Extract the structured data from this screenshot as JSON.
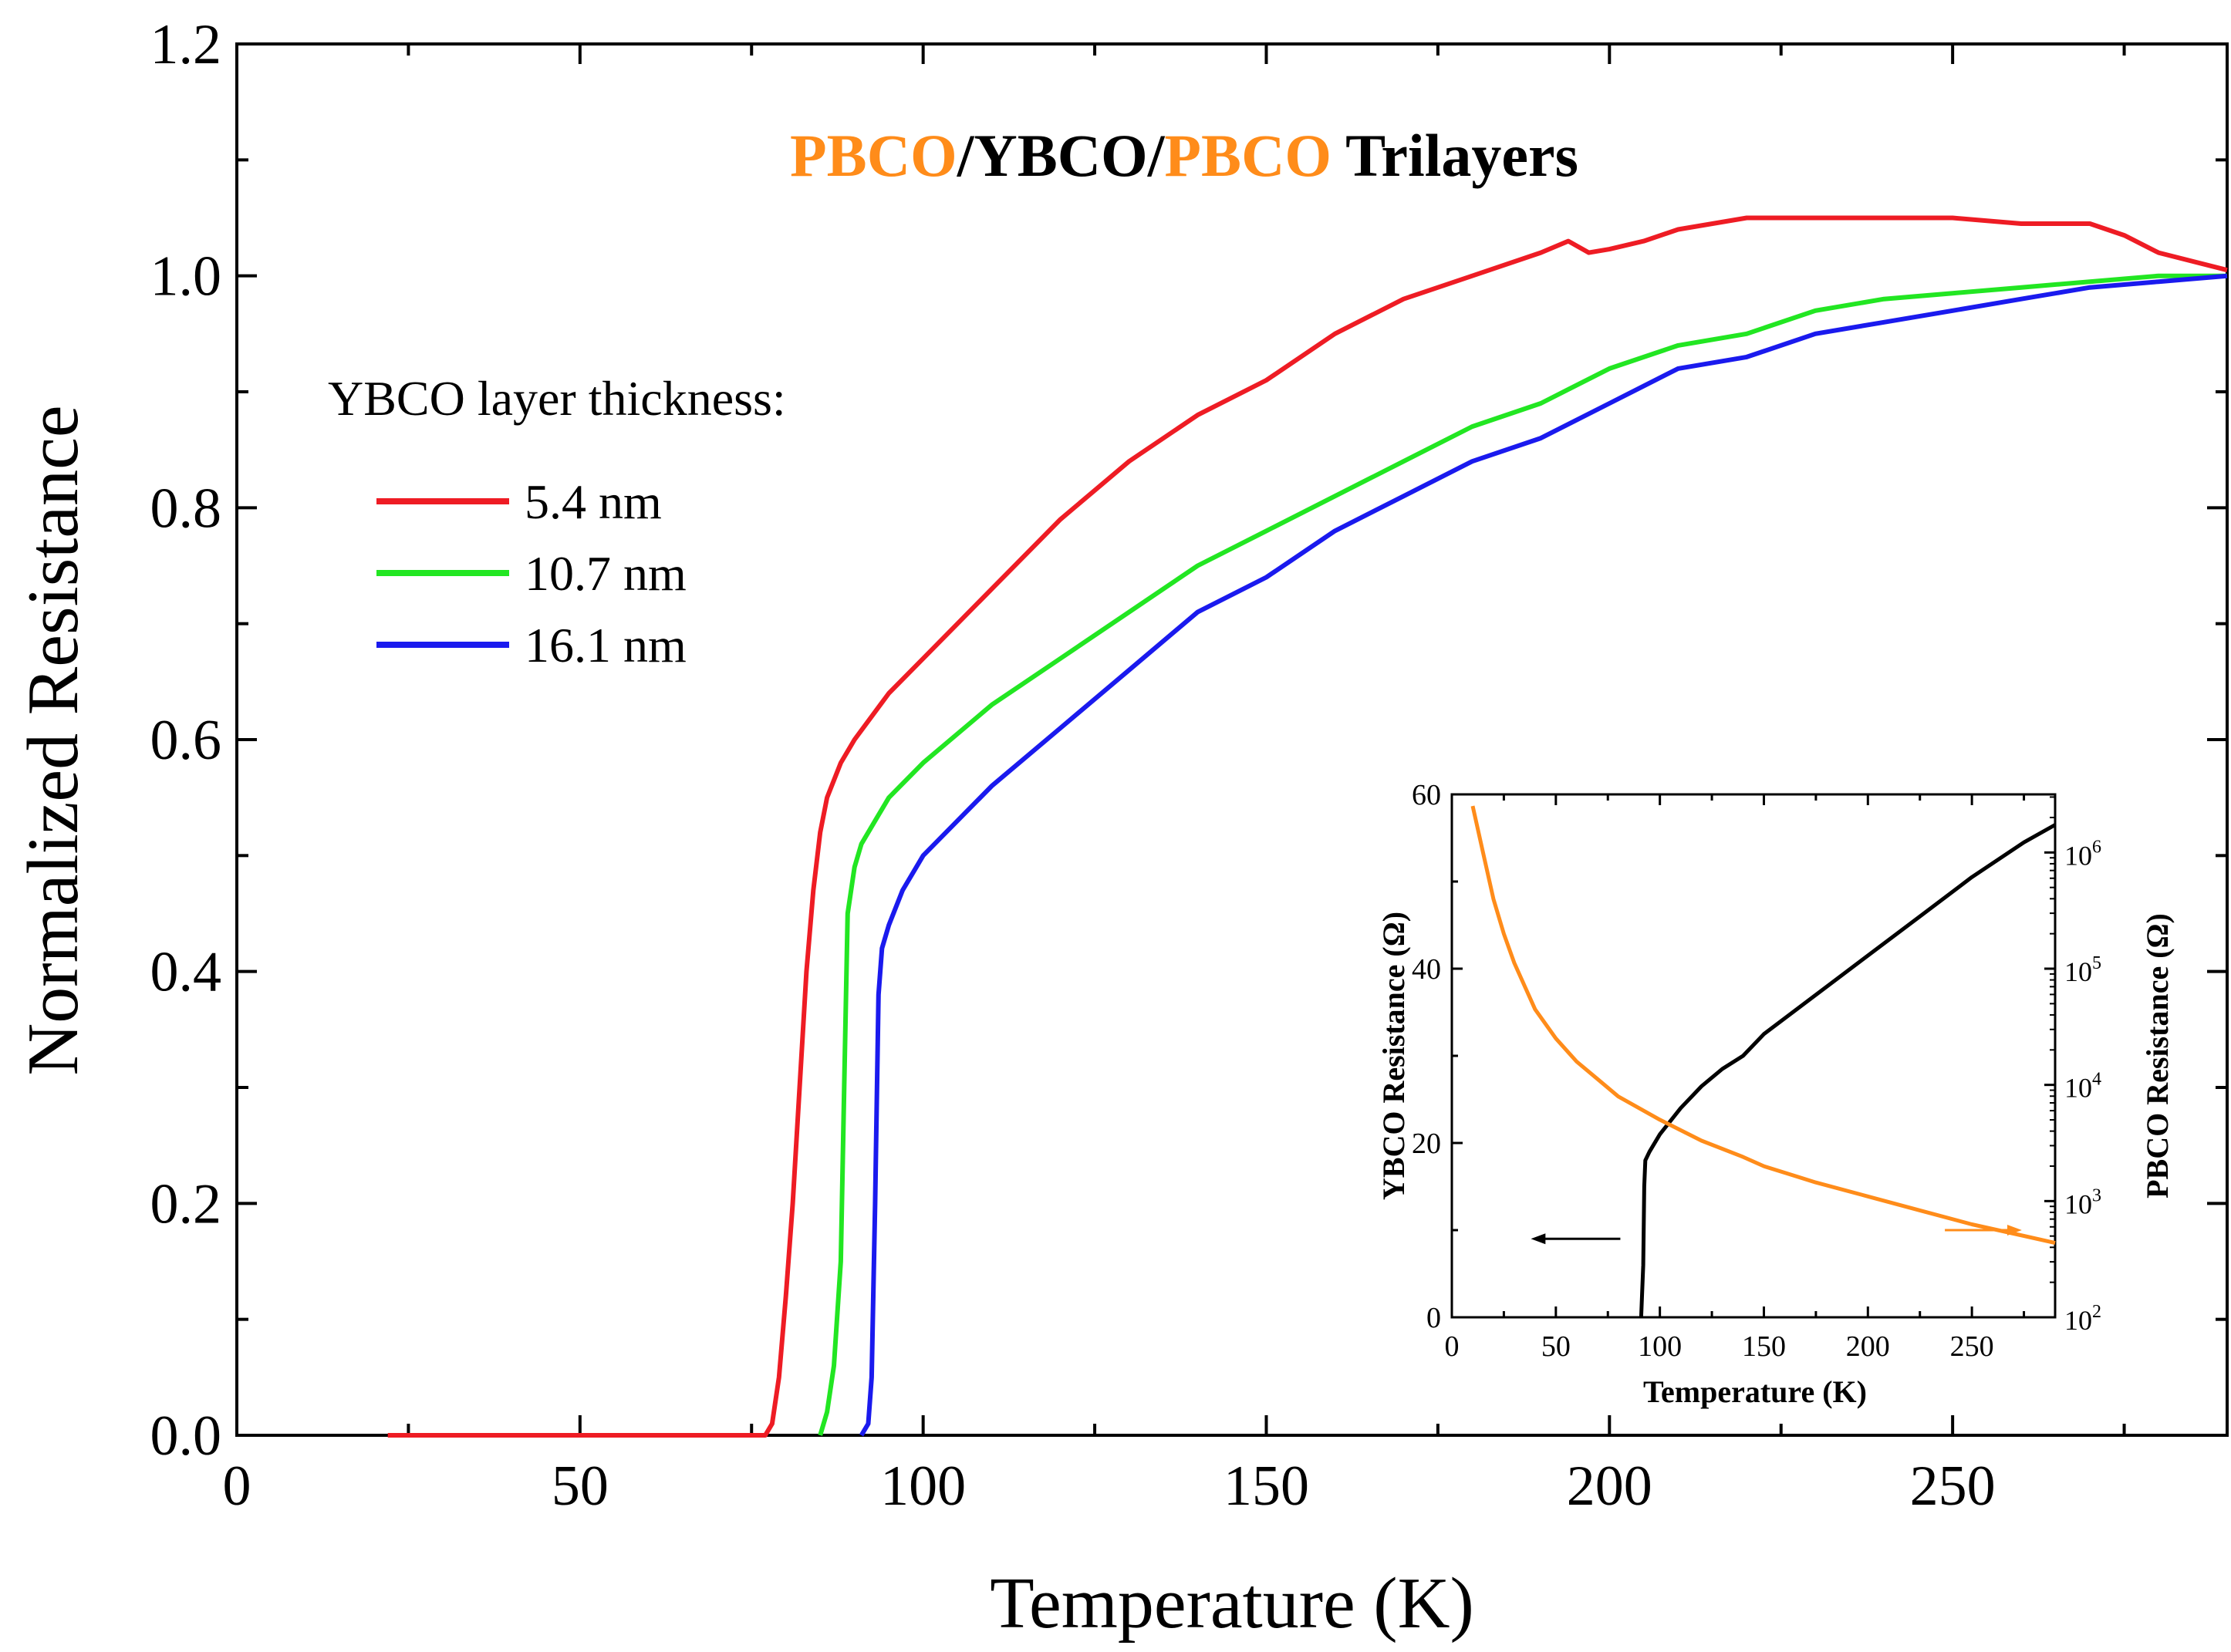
{
  "chart_data": [
    {
      "type": "line",
      "title_parts": [
        {
          "text": "PBCO",
          "color": "#ff8c1a"
        },
        {
          "text": "/YBCO/",
          "color": "#000000"
        },
        {
          "text": "PBCO",
          "color": "#ff8c1a"
        },
        {
          "text": " Trilayers",
          "color": "#000000"
        }
      ],
      "xlabel": "Temperature (K)",
      "ylabel": "Normalized Resistance",
      "xlim": [
        0,
        290
      ],
      "ylim": [
        0,
        1.2
      ],
      "xticks": [
        0,
        50,
        100,
        150,
        200,
        250
      ],
      "xtick_labels": [
        "0",
        "50",
        "100",
        "150",
        "200",
        "250"
      ],
      "yticks": [
        0,
        0.2,
        0.4,
        0.6,
        0.8,
        1.0,
        1.2
      ],
      "ytick_labels": [
        "0.0",
        "0.2",
        "0.4",
        "0.6",
        "0.8",
        "1.0",
        "1.2"
      ],
      "legend_title": "YBCO layer thickness:",
      "legend_position": "upper-left",
      "series": [
        {
          "name": "5.4 nm",
          "color": "#ee1c24",
          "points": [
            [
              22,
              0
            ],
            [
              77,
              0
            ],
            [
              78,
              0.01
            ],
            [
              79,
              0.05
            ],
            [
              80,
              0.12
            ],
            [
              81,
              0.2
            ],
            [
              82,
              0.3
            ],
            [
              83,
              0.4
            ],
            [
              84,
              0.47
            ],
            [
              85,
              0.52
            ],
            [
              86,
              0.55
            ],
            [
              88,
              0.58
            ],
            [
              90,
              0.6
            ],
            [
              95,
              0.64
            ],
            [
              100,
              0.67
            ],
            [
              110,
              0.73
            ],
            [
              120,
              0.79
            ],
            [
              130,
              0.84
            ],
            [
              140,
              0.88
            ],
            [
              150,
              0.91
            ],
            [
              160,
              0.95
            ],
            [
              170,
              0.98
            ],
            [
              180,
              1.0
            ],
            [
              190,
              1.02
            ],
            [
              194,
              1.03
            ],
            [
              197,
              1.02
            ],
            [
              200,
              1.023
            ],
            [
              205,
              1.03
            ],
            [
              210,
              1.04
            ],
            [
              220,
              1.05
            ],
            [
              230,
              1.05
            ],
            [
              240,
              1.05
            ],
            [
              250,
              1.05
            ],
            [
              260,
              1.045
            ],
            [
              270,
              1.045
            ],
            [
              275,
              1.035
            ],
            [
              280,
              1.02
            ],
            [
              290,
              1.005
            ]
          ]
        },
        {
          "name": "10.7 nm",
          "color": "#22e622",
          "points": [
            [
              85,
              0
            ],
            [
              86,
              0.02
            ],
            [
              87,
              0.06
            ],
            [
              88,
              0.15
            ],
            [
              88.5,
              0.3
            ],
            [
              89,
              0.45
            ],
            [
              90,
              0.49
            ],
            [
              91,
              0.51
            ],
            [
              93,
              0.53
            ],
            [
              95,
              0.55
            ],
            [
              100,
              0.58
            ],
            [
              110,
              0.63
            ],
            [
              120,
              0.67
            ],
            [
              130,
              0.71
            ],
            [
              140,
              0.75
            ],
            [
              150,
              0.78
            ],
            [
              160,
              0.81
            ],
            [
              170,
              0.84
            ],
            [
              180,
              0.87
            ],
            [
              190,
              0.89
            ],
            [
              200,
              0.92
            ],
            [
              210,
              0.94
            ],
            [
              220,
              0.95
            ],
            [
              230,
              0.97
            ],
            [
              240,
              0.98
            ],
            [
              250,
              0.985
            ],
            [
              260,
              0.99
            ],
            [
              270,
              0.995
            ],
            [
              280,
              1.0
            ],
            [
              290,
              1.0
            ]
          ]
        },
        {
          "name": "16.1 nm",
          "color": "#1a1aee",
          "points": [
            [
              91,
              0
            ],
            [
              92,
              0.01
            ],
            [
              92.5,
              0.05
            ],
            [
              93,
              0.2
            ],
            [
              93.5,
              0.38
            ],
            [
              94,
              0.42
            ],
            [
              95,
              0.44
            ],
            [
              97,
              0.47
            ],
            [
              100,
              0.5
            ],
            [
              110,
              0.56
            ],
            [
              120,
              0.61
            ],
            [
              130,
              0.66
            ],
            [
              140,
              0.71
            ],
            [
              150,
              0.74
            ],
            [
              160,
              0.78
            ],
            [
              170,
              0.81
            ],
            [
              180,
              0.84
            ],
            [
              190,
              0.86
            ],
            [
              200,
              0.89
            ],
            [
              210,
              0.92
            ],
            [
              220,
              0.93
            ],
            [
              230,
              0.95
            ],
            [
              240,
              0.96
            ],
            [
              250,
              0.97
            ],
            [
              260,
              0.98
            ],
            [
              270,
              0.99
            ],
            [
              280,
              0.995
            ],
            [
              290,
              1.0
            ]
          ]
        }
      ]
    },
    {
      "type": "line",
      "title": "",
      "xlabel": "Temperature (K)",
      "ylabel": "YBCO Resistance (Ω)",
      "ylabel_right": "PBCO Resistance (Ω)",
      "xlim": [
        0,
        290
      ],
      "ylim": [
        0,
        60
      ],
      "ylim_right_log10": [
        2,
        6.5
      ],
      "xticks": [
        0,
        50,
        100,
        150,
        200,
        250
      ],
      "xtick_labels": [
        "0",
        "50",
        "100",
        "150",
        "200",
        "250"
      ],
      "yticks": [
        0,
        20,
        40,
        60
      ],
      "ytick_labels": [
        "0",
        "20",
        "40",
        "60"
      ],
      "yticks_right": [
        {
          "base": "10",
          "exp": "2",
          "log10": 2
        },
        {
          "base": "10",
          "exp": "3",
          "log10": 3
        },
        {
          "base": "10",
          "exp": "4",
          "log10": 4
        },
        {
          "base": "10",
          "exp": "5",
          "log10": 5
        },
        {
          "base": "10",
          "exp": "6",
          "log10": 6
        }
      ],
      "series": [
        {
          "name": "YBCO",
          "axis": "left",
          "color": "#000000",
          "points": [
            [
              91,
              0
            ],
            [
              92,
              6
            ],
            [
              92.5,
              15
            ],
            [
              93,
              18
            ],
            [
              95,
              19
            ],
            [
              100,
              21
            ],
            [
              110,
              24
            ],
            [
              120,
              26.5
            ],
            [
              130,
              28.5
            ],
            [
              140,
              30
            ],
            [
              150,
              32.5
            ],
            [
              175,
              37
            ],
            [
              200,
              41.5
            ],
            [
              225,
              46
            ],
            [
              250,
              50.5
            ],
            [
              275,
              54.5
            ],
            [
              290,
              56.5
            ]
          ]
        },
        {
          "name": "PBCO",
          "axis": "right",
          "color": "#ff8c1a",
          "points": [
            [
              10,
              6.4
            ],
            [
              15,
              6.0
            ],
            [
              20,
              5.6
            ],
            [
              25,
              5.3
            ],
            [
              30,
              5.05
            ],
            [
              35,
              4.85
            ],
            [
              40,
              4.65
            ],
            [
              50,
              4.4
            ],
            [
              60,
              4.2
            ],
            [
              70,
              4.05
            ],
            [
              80,
              3.9
            ],
            [
              90,
              3.8
            ],
            [
              100,
              3.7
            ],
            [
              120,
              3.52
            ],
            [
              140,
              3.38
            ],
            [
              150,
              3.3
            ],
            [
              175,
              3.16
            ],
            [
              200,
              3.04
            ],
            [
              225,
              2.92
            ],
            [
              250,
              2.8
            ],
            [
              275,
              2.7
            ],
            [
              290,
              2.64
            ]
          ]
        }
      ],
      "arrows": [
        {
          "direction": "left",
          "color": "#000000"
        },
        {
          "direction": "right",
          "color": "#ff8c1a"
        }
      ]
    }
  ]
}
